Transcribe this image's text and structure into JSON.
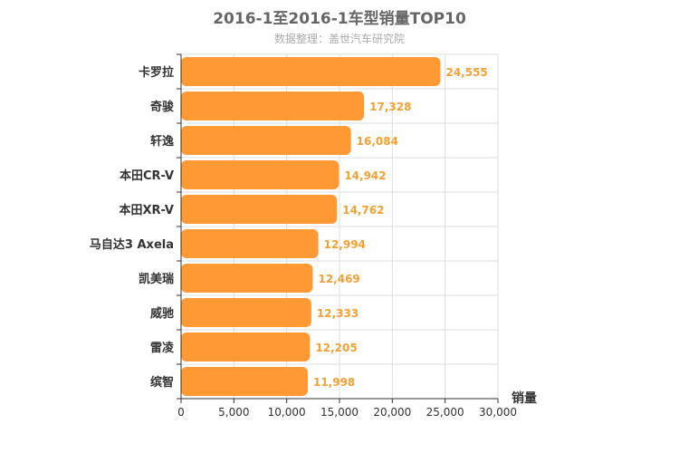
{
  "chart_data": {
    "type": "bar",
    "orientation": "horizontal",
    "title": "2016-1至2016-1车型销量TOP10",
    "subtitle": "数据整理：盖世汽车研究院",
    "categories": [
      "卡罗拉",
      "奇骏",
      "轩逸",
      "本田CR-V",
      "本田XR-V",
      "马自达3 Axela",
      "凯美瑞",
      "威驰",
      "雷凌",
      "缤智"
    ],
    "values": [
      24555,
      17328,
      16084,
      14942,
      14762,
      12994,
      12469,
      12333,
      12205,
      11998
    ],
    "value_labels": [
      "24,555",
      "17,328",
      "16,084",
      "14,942",
      "14,762",
      "12,994",
      "12,469",
      "12,333",
      "12,205",
      "11,998"
    ],
    "xlabel": "销量",
    "ylabel": "",
    "xlim": [
      0,
      30000
    ],
    "ticks": [
      0,
      5000,
      10000,
      15000,
      20000,
      25000,
      30000
    ],
    "tick_labels": [
      "0",
      "5,000",
      "10,000",
      "15,000",
      "20,000",
      "25,000",
      "30,000"
    ],
    "grid": true,
    "legend": "none",
    "bar_color": "#ff9933",
    "label_color": "#f5a033"
  }
}
